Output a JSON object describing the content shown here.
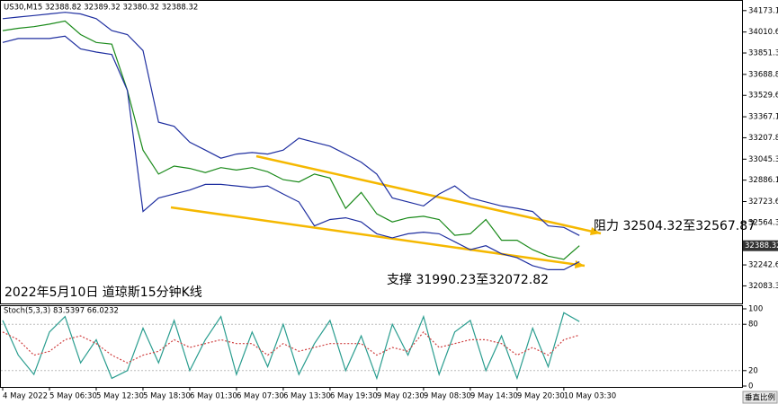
{
  "chart_data": [
    {
      "type": "line",
      "title": "US30,M15 32388.82 32389.32 32380.32 32388.32",
      "categories": [
        "4 May 2022",
        null,
        null,
        "5 May 06:30",
        null,
        null,
        "5 May 12:30",
        null,
        null,
        "5 May 18:30",
        null,
        null,
        "6 May 01:30",
        null,
        null,
        "6 May 07:30",
        null,
        null,
        "6 May 13:30",
        null,
        null,
        "6 May 19:30",
        null,
        null,
        "9 May 02:30",
        null,
        null,
        "9 May 08:30",
        null,
        null,
        "9 May 14:30",
        null,
        null,
        "9 May 20:30",
        null,
        null,
        "10 May 03:30",
        null
      ],
      "series": [
        {
          "color": "#1a8a1a",
          "values": [
            34021,
            34039,
            34051,
            34070,
            34094,
            33991,
            33931,
            33918,
            33568,
            33114,
            32932,
            32993,
            32975,
            32944,
            32981,
            32963,
            32981,
            32950,
            32890,
            32872,
            32932,
            32902,
            32672,
            32793,
            32630,
            32569,
            32600,
            32612,
            32587,
            32467,
            32479,
            32587,
            32430,
            32430,
            32358,
            32309,
            32285,
            32388
          ]
        },
        {
          "color": "#1f2fa0",
          "values": [
            34112,
            34124,
            34136,
            34148,
            34160,
            34148,
            34112,
            34021,
            33991,
            33870,
            33326,
            33295,
            33174,
            33114,
            33053,
            33084,
            33096,
            33084,
            33114,
            33205,
            33174,
            33144,
            33084,
            33023,
            32932,
            32751,
            32721,
            32690,
            32781,
            32842,
            32751,
            32721,
            32690,
            32672,
            32648,
            32539,
            32527,
            32466
          ]
        },
        {
          "color": "#1f2fa0",
          "values": [
            33931,
            33961,
            33961,
            33961,
            33979,
            33882,
            33858,
            33840,
            33568,
            32648,
            32751,
            32781,
            32811,
            32854,
            32854,
            32842,
            32829,
            32842,
            32781,
            32721,
            32539,
            32587,
            32600,
            32569,
            32479,
            32448,
            32479,
            32491,
            32479,
            32418,
            32358,
            32388,
            32327,
            32297,
            32237,
            32206,
            32206,
            32267
          ]
        }
      ],
      "ylim": [
        31950,
        34240
      ],
      "yticks": [
        34173.15,
        {
          "value": 34010.6,
          "label": "34010.60"
        },
        33851.35,
        33688.85,
        {
          "value": 33529.6,
          "label": "33529.60"
        },
        {
          "value": 33367.1,
          "label": "33367.10"
        },
        33207.85,
        33045.35,
        {
          "value": 32886.1,
          "label": "32886.10"
        },
        {
          "value": 32723.6,
          "label": "32723.60"
        },
        32564.35,
        {
          "value": 32242.6,
          "label": "32242.60"
        },
        32083.35
      ],
      "current_price": 32388.32,
      "annotations": [
        "阻力 32504.32至32567.87",
        "支撑 31990.23至32072.82",
        "2022年5月10日 道琼斯15分钟K线"
      ]
    },
    {
      "type": "line",
      "title": "Stoch(5,3,3) 83.5397 66.0232",
      "series": [
        {
          "color": "#2a9d8f",
          "values": [
            85,
            40,
            15,
            70,
            90,
            30,
            60,
            10,
            20,
            75,
            30,
            85,
            20,
            60,
            90,
            15,
            70,
            25,
            80,
            15,
            55,
            85,
            20,
            65,
            10,
            80,
            40,
            90,
            15,
            70,
            85,
            20,
            65,
            10,
            75,
            25,
            95,
            83.5397
          ]
        },
        {
          "color": "#d04040",
          "values": [
            70,
            60,
            40,
            45,
            60,
            65,
            55,
            40,
            30,
            40,
            45,
            60,
            50,
            55,
            60,
            55,
            55,
            40,
            55,
            45,
            50,
            55,
            55,
            55,
            40,
            50,
            45,
            70,
            50,
            55,
            60,
            60,
            55,
            40,
            50,
            40,
            60,
            66.0232
          ]
        }
      ],
      "ylim": [
        0,
        100
      ],
      "yticks": [
        100,
        80,
        20,
        0
      ]
    }
  ],
  "button": "垂直比例"
}
